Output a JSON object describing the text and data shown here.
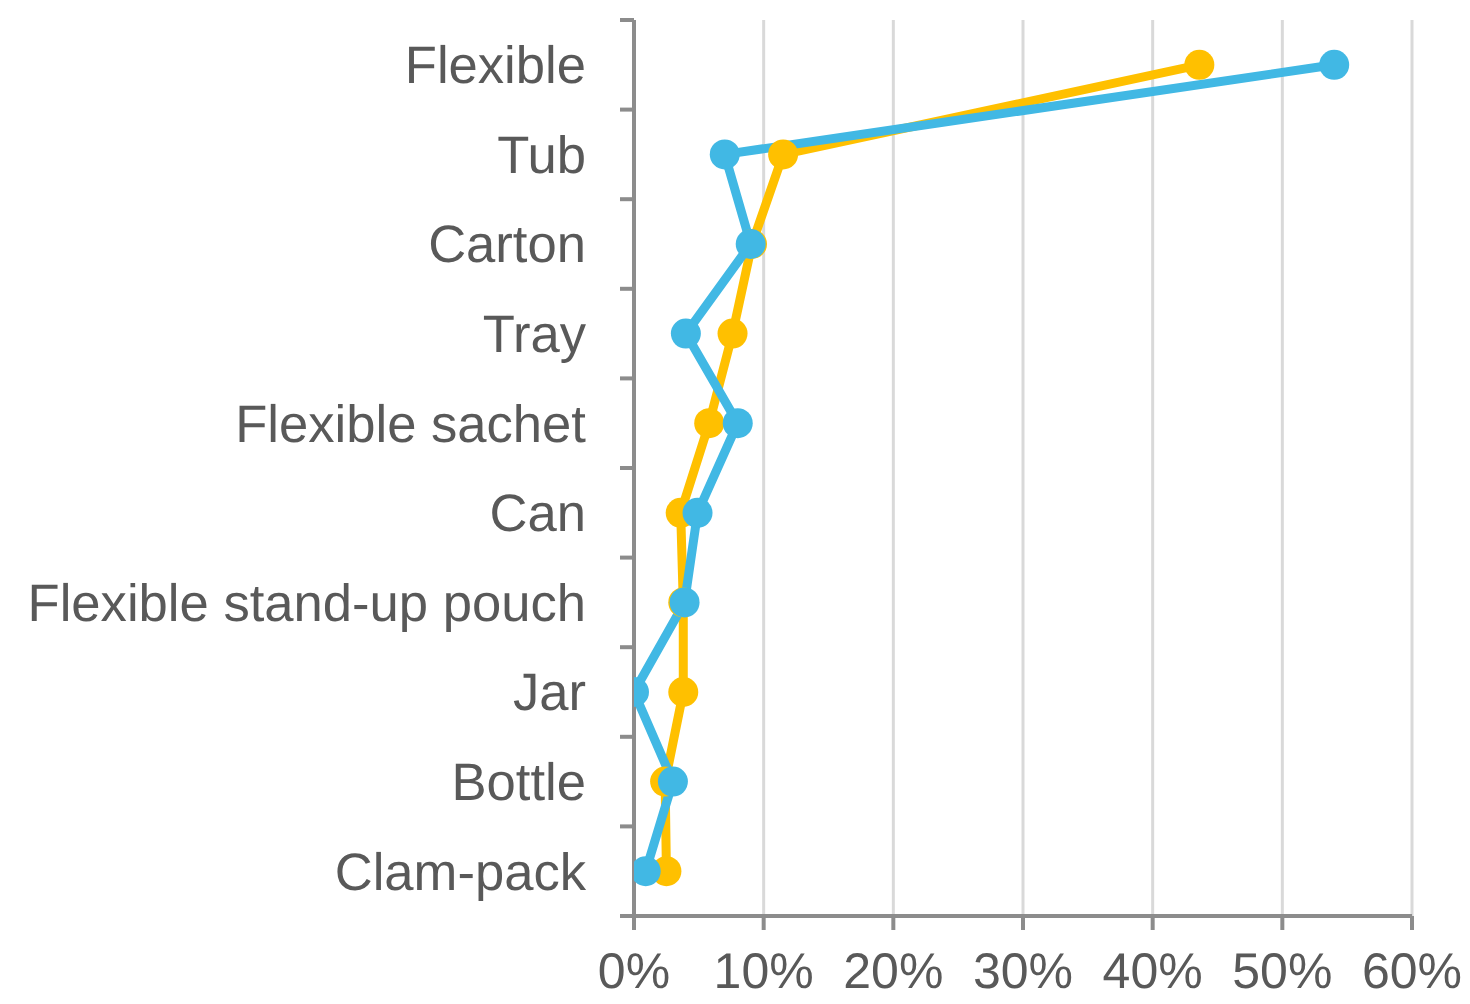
{
  "chart_data": {
    "type": "line",
    "orientation": "horizontal",
    "categories": [
      "Flexible",
      "Tub",
      "Carton",
      "Tray",
      "Flexible sachet",
      "Can",
      "Flexible stand-up pouch",
      "Jar",
      "Bottle",
      "Clam-pack"
    ],
    "series": [
      {
        "color": "#ffc000",
        "values": [
          43.6,
          11.5,
          9.1,
          7.6,
          5.8,
          3.6,
          3.8,
          3.8,
          2.4,
          2.5
        ]
      },
      {
        "color": "#41b8e4",
        "values": [
          54.0,
          7.0,
          9.0,
          4.0,
          8.0,
          4.9,
          3.9,
          0,
          3.0,
          0.9
        ]
      }
    ],
    "xlim": [
      0,
      60
    ],
    "xticks": [
      {
        "value": 0,
        "label": "0%"
      },
      {
        "value": 10,
        "label": "10%"
      },
      {
        "value": 20,
        "label": "20%"
      },
      {
        "value": 30,
        "label": "30%"
      },
      {
        "value": 40,
        "label": "40%"
      },
      {
        "value": 50,
        "label": "50%"
      },
      {
        "value": 60,
        "label": "60%"
      }
    ],
    "grid": "x",
    "marker": "circle"
  }
}
